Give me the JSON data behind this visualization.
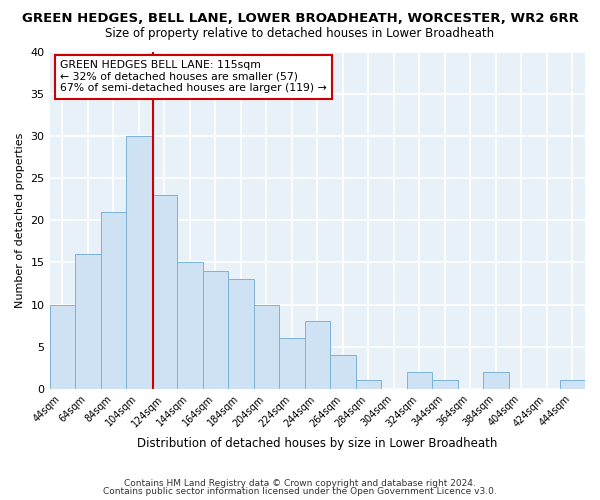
{
  "title": "GREEN HEDGES, BELL LANE, LOWER BROADHEATH, WORCESTER, WR2 6RR",
  "subtitle": "Size of property relative to detached houses in Lower Broadheath",
  "xlabel": "Distribution of detached houses by size in Lower Broadheath",
  "ylabel": "Number of detached properties",
  "bin_labels": [
    "44sqm",
    "64sqm",
    "84sqm",
    "104sqm",
    "124sqm",
    "144sqm",
    "164sqm",
    "184sqm",
    "204sqm",
    "224sqm",
    "244sqm",
    "264sqm",
    "284sqm",
    "304sqm",
    "324sqm",
    "344sqm",
    "364sqm",
    "384sqm",
    "404sqm",
    "424sqm",
    "444sqm"
  ],
  "bar_values": [
    10,
    16,
    21,
    30,
    23,
    15,
    14,
    13,
    10,
    6,
    8,
    4,
    1,
    0,
    2,
    1,
    0,
    2,
    0,
    0,
    1
  ],
  "bar_color": "#cfe2f3",
  "bar_edge_color": "#7ab3d6",
  "vline_x_index": 3,
  "vline_color": "#cc0000",
  "ylim": [
    0,
    40
  ],
  "annotation_text": "GREEN HEDGES BELL LANE: 115sqm\n← 32% of detached houses are smaller (57)\n67% of semi-detached houses are larger (119) →",
  "annotation_box_color": "white",
  "annotation_box_edge_color": "#cc0000",
  "footer1": "Contains HM Land Registry data © Crown copyright and database right 2024.",
  "footer2": "Contains public sector information licensed under the Open Government Licence v3.0.",
  "bg_color": "#ffffff",
  "plot_bg_color": "#e8f0f8",
  "grid_color": "#ffffff",
  "title_fontsize": 9.5,
  "subtitle_fontsize": 8.5
}
